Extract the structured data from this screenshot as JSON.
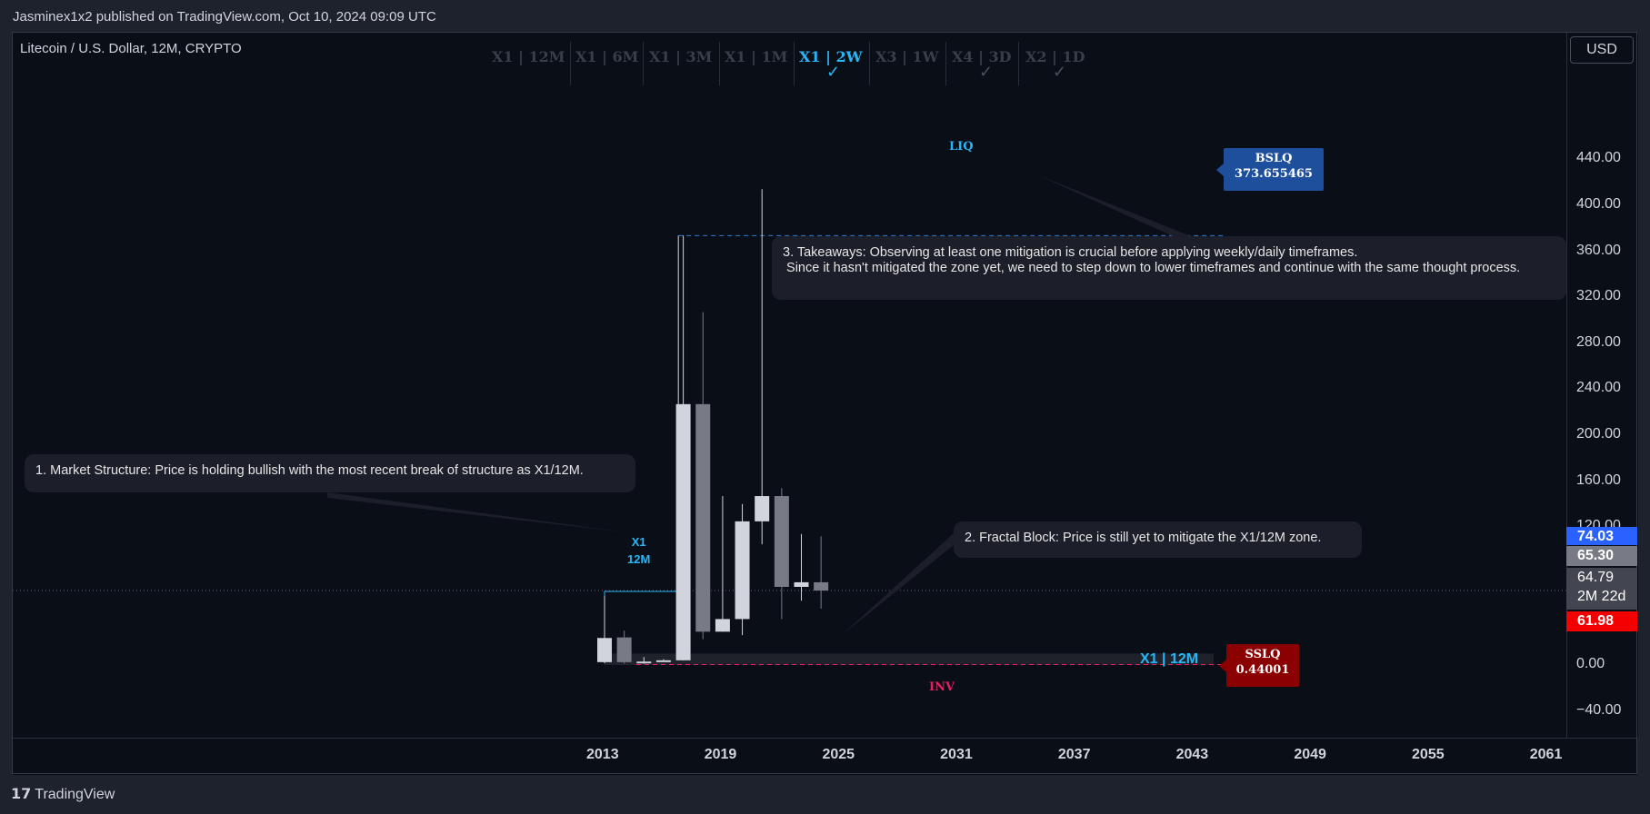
{
  "header": {
    "published": "Jasminex1x2 published on TradingView.com, Oct 10, 2024 09:09 UTC"
  },
  "symbol": "Litecoin / U.S. Dollar, 12M, CRYPTO",
  "currency_button": "USD",
  "timeframes": [
    {
      "label": "X1 | 12M",
      "active": false,
      "check": ""
    },
    {
      "label": "X1 | 6M",
      "active": false,
      "check": ""
    },
    {
      "label": "X1 | 3M",
      "active": false,
      "check": ""
    },
    {
      "label": "X1 | 1M",
      "active": false,
      "check": ""
    },
    {
      "label": "X1 | 2W",
      "active": true,
      "check": "✓"
    },
    {
      "label": "X3 | 1W",
      "active": false,
      "check": ""
    },
    {
      "label": "X4 | 3D",
      "active": false,
      "check": "✓"
    },
    {
      "label": "X2 | 1D",
      "active": false,
      "check": "✓"
    }
  ],
  "notes": {
    "n1": "1. Market Structure: Price is holding bullish with the most recent break of structure as X1/12M.",
    "n2": "2. Fractal Block: Price is still yet to mitigate the X1/12M zone.",
    "n3": "3. Takeaways: Observing at least one mitigation is crucial before applying weekly/daily timeframes.\n Since it hasn't mitigated the zone yet, we need to step down to lower timeframes and continue with the same thought process."
  },
  "labels": {
    "liq": "LIQ",
    "inv": "INV",
    "x1_12m_vertical": "X1\n12M",
    "x1_12m_zone": "X1 | 12M",
    "bslq_title": "BSLQ",
    "bslq_value": "373.655465",
    "sslq_title": "SSLQ",
    "sslq_value": "0.44001"
  },
  "price_tags": [
    {
      "text": "74.03",
      "color": "#2962ff"
    },
    {
      "text": "65.30",
      "color": "#787b86"
    },
    {
      "text": "64.79\n2M 22d",
      "color": "#434651"
    },
    {
      "text": "61.98",
      "color": "#f50000"
    }
  ],
  "footer": {
    "brand": "TradingView"
  },
  "colors": {
    "bull": "#d1d4dc",
    "bear": "#787b86",
    "accent": "#29b6f6",
    "bslq": "#1e4f9c",
    "sslq": "#8b0000",
    "inv": "#e91e63"
  },
  "chart_data": {
    "type": "candlestick",
    "title": "Litecoin / U.S. Dollar, 12M, CRYPTO",
    "y_ticks": [
      440,
      400,
      360,
      320,
      280,
      240,
      200,
      160,
      120,
      0,
      -40
    ],
    "y_tick_labels": [
      "440.00",
      "400.00",
      "360.00",
      "320.00",
      "280.00",
      "240.00",
      "200.00",
      "160.00",
      "120.00",
      "0.00",
      "−40.00"
    ],
    "x_ticks": [
      2013,
      2019,
      2025,
      2031,
      2037,
      2043,
      2049,
      2055,
      2061
    ],
    "x_tick_labels": [
      "2013",
      "2019",
      "2025",
      "2031",
      "2037",
      "2043",
      "2049",
      "2055",
      "2061"
    ],
    "ylim": [
      -55,
      460
    ],
    "xlim": [
      2013,
      2061
    ],
    "candles": [
      {
        "t": 2013.0,
        "o": 2.5,
        "h": 60,
        "l": 1.5,
        "c": 23.5
      },
      {
        "t": 2014.0,
        "o": 24,
        "h": 30,
        "l": 1.2,
        "c": 2.5
      },
      {
        "t": 2015.0,
        "o": 1.8,
        "h": 7,
        "l": 1.1,
        "c": 3.0
      },
      {
        "t": 2016.0,
        "o": 3.0,
        "h": 5,
        "l": 2.9,
        "c": 4.1
      },
      {
        "t": 2017.0,
        "o": 4.1,
        "h": 373.7,
        "l": 4.0,
        "c": 227
      },
      {
        "t": 2018.0,
        "o": 227,
        "h": 307,
        "l": 22.5,
        "c": 29
      },
      {
        "t": 2019.0,
        "o": 29,
        "h": 147,
        "l": 29,
        "c": 40
      },
      {
        "t": 2020.0,
        "o": 40,
        "h": 140,
        "l": 26,
        "c": 125
      },
      {
        "t": 2021.0,
        "o": 125,
        "h": 414,
        "l": 105,
        "c": 147
      },
      {
        "t": 2022.0,
        "o": 147,
        "h": 154,
        "l": 40,
        "c": 68
      },
      {
        "t": 2023.0,
        "o": 68,
        "h": 114,
        "l": 56,
        "c": 72
      },
      {
        "t": 2024.0,
        "o": 72,
        "h": 112,
        "l": 49,
        "c": 64.79
      }
    ],
    "levels": {
      "bslq": 373.655465,
      "sslq": 0.44001,
      "current": 64.79
    }
  }
}
